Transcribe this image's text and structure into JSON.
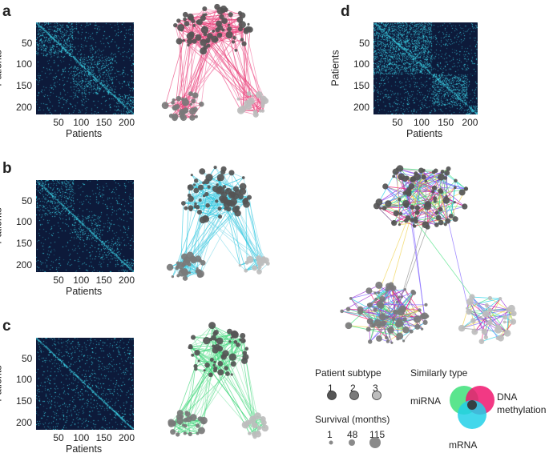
{
  "panels": [
    {
      "letter": "a",
      "color": "#e8437a",
      "band_blocks": [
        [
          0,
          0.37
        ],
        [
          0.37,
          0.78
        ],
        [
          0.78,
          1.0
        ]
      ],
      "density": 0.22
    },
    {
      "letter": "b",
      "color": "#2ec8e0",
      "band_blocks": [
        [
          0,
          0.38
        ],
        [
          0.38,
          0.66
        ],
        [
          0.66,
          0.86
        ],
        [
          0.86,
          1.0
        ]
      ],
      "density": 0.18
    },
    {
      "letter": "c",
      "color": "#3ed679",
      "band_blocks": [
        [
          0,
          1.0
        ]
      ],
      "density": 0.06
    },
    {
      "letter": "d",
      "color": "#2ec8e0",
      "band_blocks": [
        [
          0,
          0.56
        ],
        [
          0.56,
          0.9
        ],
        [
          0.9,
          1.0
        ]
      ],
      "density": 0.32
    }
  ],
  "axis": {
    "y_ticks": [
      "50",
      "100",
      "150",
      "200"
    ],
    "x_ticks": [
      "50",
      "100",
      "150",
      "200"
    ],
    "xlabel": "Patients",
    "ylabel": "Patients"
  },
  "legend": {
    "subtype_title": "Patient subtype",
    "subtype_labels": [
      "1",
      "2",
      "3"
    ],
    "survival_title": "Survival (months)",
    "survival_labels": [
      "1",
      "48",
      "115"
    ],
    "similarity_title": "Similarly type",
    "venn_mirna": "miRNA",
    "venn_dna_line1": "DNA",
    "venn_dna_line2": "methylation",
    "venn_mrna": "mRNA",
    "colors": {
      "mirna": "#3ee07a",
      "dna": "#f0166e",
      "mrna": "#22d0e8",
      "node1": "#555555",
      "node2": "#7a7a7a",
      "node3": "#bdbdbd"
    }
  }
}
